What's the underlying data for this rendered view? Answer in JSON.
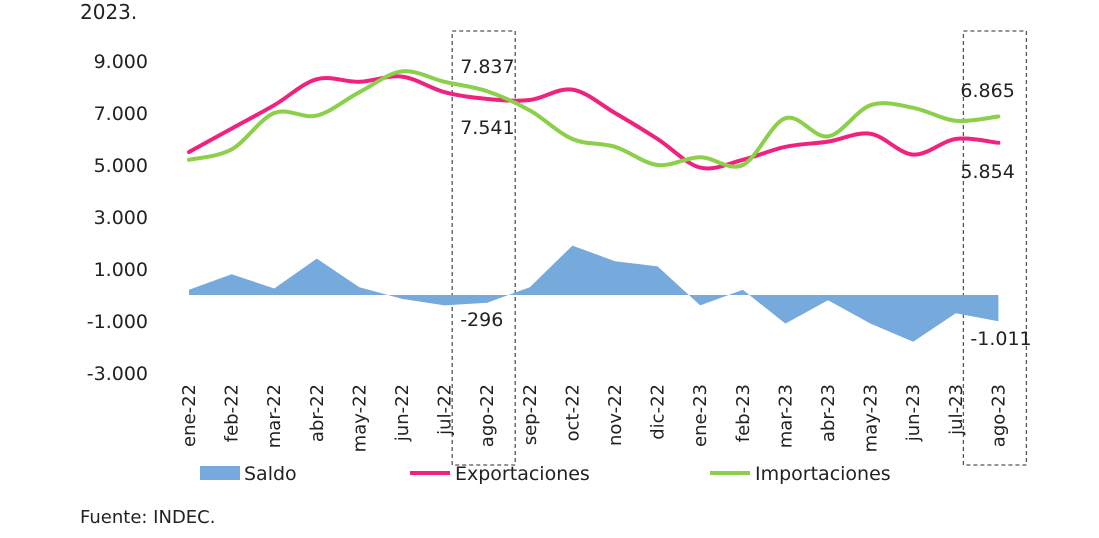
{
  "header_text": "2023.",
  "source": "Fuente: INDEC.",
  "chart_data": {
    "type": "line",
    "categories": [
      "ene-22",
      "feb-22",
      "mar-22",
      "abr-22",
      "may-22",
      "jun-22",
      "jul-22",
      "ago-22",
      "sep-22",
      "oct-22",
      "nov-22",
      "dic-22",
      "ene-23",
      "feb-23",
      "mar-23",
      "abr-23",
      "may-23",
      "jun-23",
      "jul-23",
      "ago-23"
    ],
    "yticks": [
      "9.000",
      "7.000",
      "5.000",
      "3.000",
      "1.000",
      "-1.000",
      "-3.000"
    ],
    "ytick_values": [
      9000,
      7000,
      5000,
      3000,
      1000,
      -1000,
      -3000
    ],
    "ylim": [
      -3000,
      9000
    ],
    "grid": false,
    "legend_position": "bottom",
    "series": [
      {
        "name": "Saldo",
        "kind": "area",
        "color": "#76a9dc",
        "values": [
          200,
          800,
          250,
          1400,
          300,
          -150,
          -400,
          -296,
          300,
          1900,
          1300,
          1100,
          -400,
          200,
          -1100,
          -200,
          -1100,
          -1800,
          -700,
          -1011
        ]
      },
      {
        "name": "Exportaciones",
        "kind": "line",
        "color": "#f0217f",
        "values": [
          5500,
          6400,
          7300,
          8300,
          8200,
          8400,
          7800,
          7541,
          7500,
          7900,
          7000,
          6000,
          4900,
          5200,
          5700,
          5900,
          6200,
          5400,
          6000,
          5854
        ]
      },
      {
        "name": "Importaciones",
        "kind": "line",
        "color": "#8bcf4a",
        "values": [
          5200,
          5600,
          7000,
          6900,
          7800,
          8600,
          8200,
          7837,
          7100,
          6000,
          5700,
          5000,
          5300,
          5000,
          6800,
          6100,
          7300,
          7200,
          6700,
          6865
        ]
      }
    ],
    "annotations": [
      {
        "category": "ago-22",
        "texts": [
          "7.837",
          "7.541",
          "-296"
        ]
      },
      {
        "category": "ago-23",
        "texts": [
          "6.865",
          "5.854",
          "-1.011"
        ]
      }
    ]
  }
}
